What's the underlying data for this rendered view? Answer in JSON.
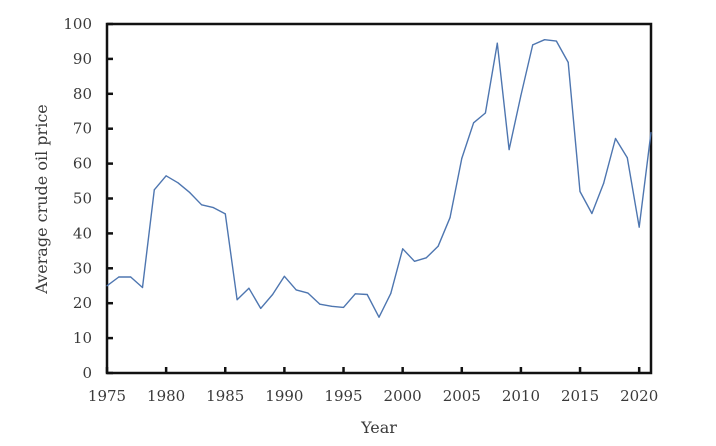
{
  "chart_data": {
    "type": "line",
    "title": "",
    "xlabel": "Year",
    "ylabel": "Average crude oil price",
    "xlim": [
      1975,
      2021
    ],
    "ylim": [
      0,
      100
    ],
    "x_ticks": [
      1975,
      1980,
      1985,
      1990,
      1995,
      2000,
      2005,
      2010,
      2015,
      2020
    ],
    "y_ticks": [
      0,
      10,
      20,
      30,
      40,
      50,
      60,
      70,
      80,
      90,
      100
    ],
    "grid": false,
    "legend": "none",
    "line_color": "#4e76b0",
    "series": [
      {
        "x": [
          1975,
          1976,
          1977,
          1978,
          1979,
          1980,
          1981,
          1982,
          1983,
          1984,
          1985,
          1986,
          1987,
          1988,
          1989,
          1990,
          1991,
          1992,
          1993,
          1994,
          1995,
          1996,
          1997,
          1998,
          1999,
          2000,
          2001,
          2002,
          2003,
          2004,
          2005,
          2006,
          2007,
          2008,
          2009,
          2010,
          2011,
          2012,
          2013,
          2014,
          2015,
          2016,
          2017,
          2018,
          2019,
          2020,
          2021
        ],
        "values": [
          25,
          27.5,
          27.5,
          24.5,
          52.5,
          56.5,
          54.5,
          51.7,
          48.2,
          47.4,
          45.6,
          21,
          24.3,
          18.5,
          22.5,
          27.7,
          23.8,
          22.9,
          19.7,
          19.1,
          18.8,
          22.7,
          22.5,
          16,
          22.8,
          35.6,
          32,
          33,
          36.3,
          44.5,
          61.5,
          71.7,
          74.5,
          94.5,
          64,
          79.5,
          94,
          95.5,
          95.1,
          89,
          52,
          45.7,
          54.4,
          67.2,
          61.7,
          41.8,
          68.9
        ]
      }
    ]
  }
}
